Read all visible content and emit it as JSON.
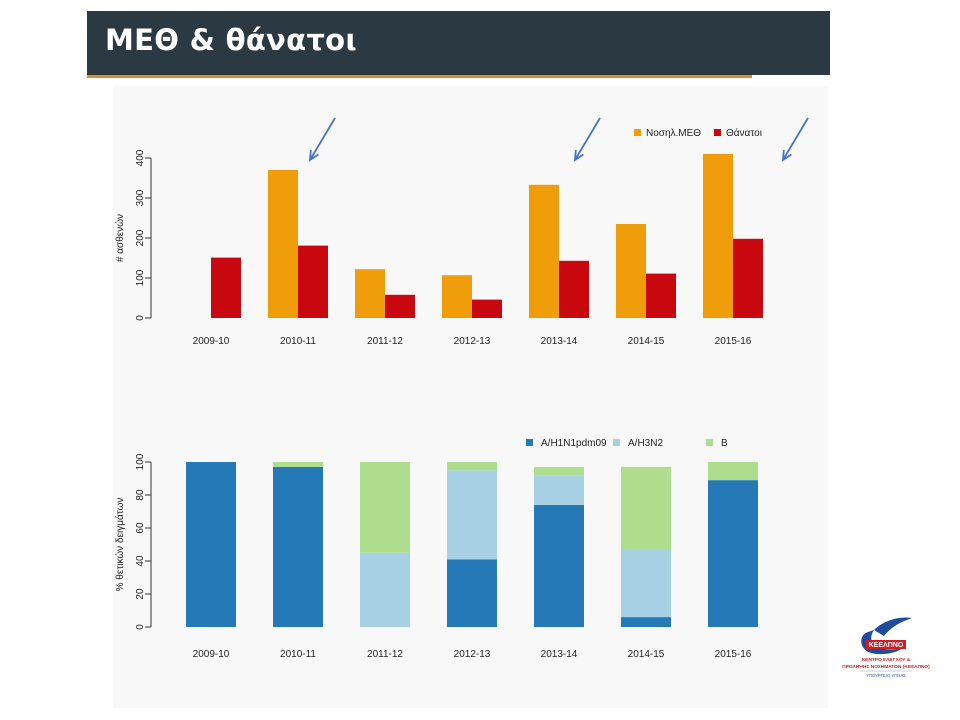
{
  "header": {
    "title": "ΜΕΘ & θάνατοι"
  },
  "colors": {
    "icu": "#ef9d0a",
    "deaths": "#c9070f",
    "h1n1": "#2479b6",
    "h3n2": "#a8d0e4",
    "b": "#aedd8e",
    "arrow": "#4472c4",
    "header_bg": "#2b3a42",
    "accent_line": "#e3892b",
    "logo_blue": "#1c4d9f",
    "logo_red": "#d11b20"
  },
  "chart_data": [
    {
      "type": "bar",
      "ylabel": "# ασθενών",
      "ylim": [
        0,
        400
      ],
      "yticks": [
        0,
        100,
        200,
        300,
        400
      ],
      "categories": [
        "2009-10",
        "2010-11",
        "2011-12",
        "2012-13",
        "2013-14",
        "2014-15",
        "2015-16"
      ],
      "legend_position": "top-right",
      "series": [
        {
          "name": "Νοσηλ.ΜΕΘ",
          "color_key": "icu",
          "values": [
            null,
            370,
            122,
            107,
            333,
            235,
            410
          ]
        },
        {
          "name": "Θάνατοι",
          "color_key": "deaths",
          "values": [
            151,
            181,
            58,
            46,
            143,
            111,
            198
          ]
        }
      ]
    },
    {
      "type": "bar",
      "stacked": true,
      "ylabel": "% θετικών δειγμάτων",
      "ylim": [
        0,
        100
      ],
      "yticks": [
        0,
        20,
        40,
        60,
        80,
        100
      ],
      "categories": [
        "2009-10",
        "2010-11",
        "2011-12",
        "2012-13",
        "2013-14",
        "2014-15",
        "2015-16"
      ],
      "legend_position": "top-right",
      "series": [
        {
          "name": "A/H1N1pdm09",
          "color_key": "h1n1",
          "values": [
            100,
            97,
            0,
            41,
            74,
            6,
            89
          ]
        },
        {
          "name": "A/H3N2",
          "color_key": "h3n2",
          "values": [
            0,
            0,
            45,
            54,
            18,
            41,
            0
          ]
        },
        {
          "name": "B",
          "color_key": "b",
          "values": [
            0,
            3,
            55,
            5,
            5,
            50,
            11
          ]
        }
      ]
    }
  ],
  "logo": {
    "name": "ΚΕΕΛΠΝΟ",
    "line1": "ΚΕΝΤΡΟ ΕΛΕΓΧΟΥ &",
    "line2": "ΠΡΟΛΗΨΗΣ ΝΟΣΗΜΑΤΩΝ (ΚΕΕΛΠΝΟ)",
    "line3": "ΥΠΟΥΡΓΕΙΟ ΥΓΕΙΑΣ"
  }
}
